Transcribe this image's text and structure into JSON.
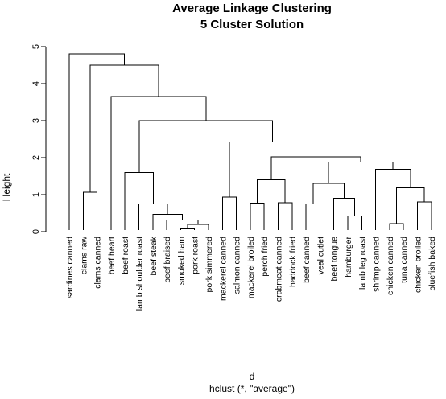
{
  "chart_data": {
    "type": "dendrogram",
    "title": "Average Linkage Clustering",
    "subtitle": "5 Cluster Solution",
    "ylabel": "Height",
    "xlabel": "d",
    "sublabel": "hclust (*, \"average\")",
    "ylim": [
      0,
      5
    ],
    "yticks": [
      0,
      1,
      2,
      3,
      4,
      5
    ],
    "leaves": [
      "sardines canned",
      "clams raw",
      "clams canned",
      "beef heart",
      "beef roast",
      "lamb shoulder roast",
      "beef steak",
      "beef braised",
      "smoked ham",
      "pork roast",
      "pork simmered",
      "mackerel canned",
      "salmon canned",
      "mackerel broiled",
      "perch fried",
      "crabmeat canned",
      "haddock fried",
      "beef canned",
      "veal cutlet",
      "beef tongue",
      "hamburger",
      "lamb leg roast",
      "shrimp canned",
      "chicken canned",
      "tuna canned",
      "chicken broiled",
      "bluefish baked"
    ],
    "merges": [
      {
        "id": "A",
        "left": "smoked ham",
        "right": "pork roast",
        "height": 0.08
      },
      {
        "id": "B",
        "left": "pork simmered",
        "right": "A",
        "height": 0.2
      },
      {
        "id": "C",
        "left": "beef braised",
        "right": "B",
        "height": 0.32
      },
      {
        "id": "D",
        "left": "beef steak",
        "right": "C",
        "height": 0.47
      },
      {
        "id": "E",
        "left": "lamb shoulder roast",
        "right": "D",
        "height": 0.75
      },
      {
        "id": "F",
        "left": "beef roast",
        "right": "E",
        "height": 1.6
      },
      {
        "id": "G",
        "left": "mackerel canned",
        "right": "salmon canned",
        "height": 0.93
      },
      {
        "id": "H",
        "left": "mackerel broiled",
        "right": "perch fried",
        "height": 0.77
      },
      {
        "id": "I",
        "left": "crabmeat canned",
        "right": "haddock fried",
        "height": 0.78
      },
      {
        "id": "J",
        "left": "H",
        "right": "I",
        "height": 1.4
      },
      {
        "id": "K",
        "left": "hamburger",
        "right": "lamb leg roast",
        "height": 0.42
      },
      {
        "id": "L",
        "left": "beef tongue",
        "right": "K",
        "height": 0.9
      },
      {
        "id": "M",
        "left": "beef canned",
        "right": "veal cutlet",
        "height": 0.75
      },
      {
        "id": "N",
        "left": "M",
        "right": "L",
        "height": 1.3
      },
      {
        "id": "O",
        "left": "chicken canned",
        "right": "tuna canned",
        "height": 0.22
      },
      {
        "id": "P",
        "left": "chicken broiled",
        "right": "bluefish baked",
        "height": 0.8
      },
      {
        "id": "Q",
        "left": "O",
        "right": "P",
        "height": 1.18
      },
      {
        "id": "R",
        "left": "shrimp canned",
        "right": "Q",
        "height": 1.68
      },
      {
        "id": "S",
        "left": "N",
        "right": "R",
        "height": 1.88
      },
      {
        "id": "T",
        "left": "J",
        "right": "S",
        "height": 2.02
      },
      {
        "id": "U",
        "left": "G",
        "right": "T",
        "height": 2.42
      },
      {
        "id": "V",
        "left": "F",
        "right": "U",
        "height": 3.0
      },
      {
        "id": "W",
        "left": "beef heart",
        "right": "V",
        "height": 3.65
      },
      {
        "id": "X",
        "left": "clams raw",
        "right": "clams canned",
        "height": 1.07
      },
      {
        "id": "Y",
        "left": "X",
        "right": "W",
        "height": 4.5
      },
      {
        "id": "Z",
        "left": "sardines canned",
        "right": "Y",
        "height": 4.8
      }
    ]
  }
}
